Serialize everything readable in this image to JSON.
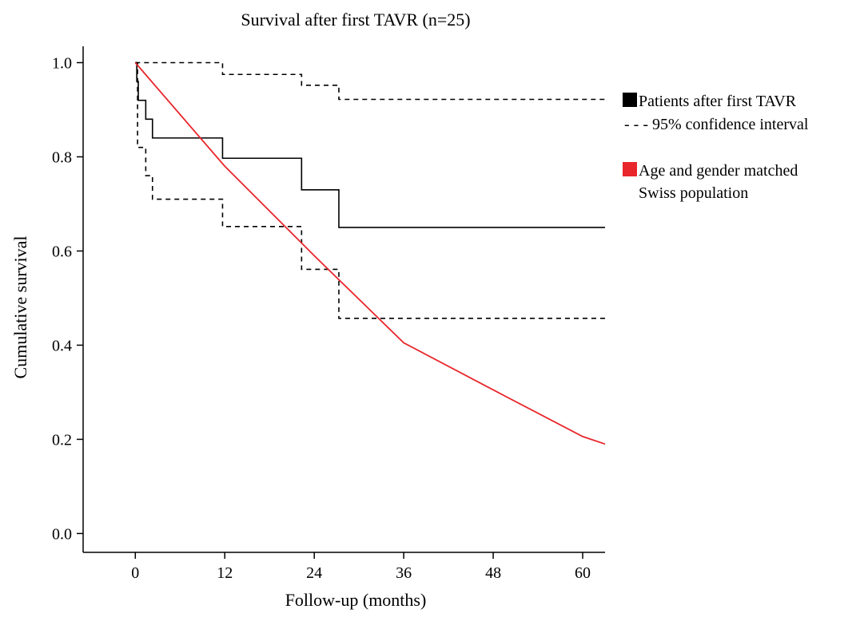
{
  "chart_data": {
    "type": "line",
    "title": "Survival after first TAVR (n=25)",
    "xlabel": "Follow-up (months)",
    "ylabel": "Cumulative survival",
    "xlim": [
      -7,
      63
    ],
    "ylim": [
      -0.04,
      1.05
    ],
    "x_ticks": [
      0,
      12,
      24,
      36,
      48,
      60
    ],
    "x_tick_labels": [
      "0",
      "12",
      "24",
      "36",
      "48",
      "60"
    ],
    "y_ticks": [
      0.0,
      0.2,
      0.4,
      0.6,
      0.8,
      1.0
    ],
    "y_tick_labels": [
      "0.0",
      "0.2",
      "0.4",
      "0.6",
      "0.8",
      "1.0"
    ],
    "grid": false,
    "legend_position": "right",
    "series": [
      {
        "name": "Patients after first TAVR",
        "style": "step",
        "dash": "solid",
        "color": "#000000",
        "x": [
          0,
          0.2,
          0.4,
          1.4,
          2.3,
          11.7,
          22.3,
          27.3,
          63
        ],
        "y": [
          1.0,
          0.96,
          0.92,
          0.88,
          0.84,
          0.797,
          0.73,
          0.65,
          0.65
        ]
      },
      {
        "name": "95% confidence interval",
        "style": "step",
        "dash": "dashed",
        "color": "#000000",
        "x": [
          0,
          11.7,
          22.3,
          25.0,
          27.3,
          63
        ],
        "y": [
          1.0,
          0.975,
          0.952,
          0.952,
          0.922,
          0.922
        ]
      },
      {
        "name": "",
        "style": "step",
        "dash": "dashed",
        "color": "#000000",
        "x": [
          0,
          0.3,
          1.4,
          2.3,
          11.7,
          22.3,
          27.3,
          63
        ],
        "y": [
          1.0,
          0.82,
          0.76,
          0.71,
          0.652,
          0.561,
          0.457,
          0.457
        ]
      },
      {
        "name": "Age and gender matched Swiss population",
        "style": "line",
        "dash": "solid",
        "color": "#e8262b",
        "x": [
          0,
          12,
          24,
          36,
          48,
          60,
          63
        ],
        "y": [
          1.0,
          0.78,
          0.59,
          0.405,
          0.305,
          0.206,
          0.19
        ]
      }
    ]
  },
  "legend": {
    "items": [
      {
        "marker": "filled-square",
        "color": "#000000",
        "lines": [
          "Patients after first TAVR"
        ]
      },
      {
        "marker": "dash",
        "color": "#000000",
        "lines": [
          "95% confidence interval"
        ],
        "prefix": "- - -"
      },
      {
        "marker": "filled-square",
        "color": "#e8262b",
        "lines": [
          "Age and gender matched",
          "Swiss population"
        ]
      }
    ]
  }
}
